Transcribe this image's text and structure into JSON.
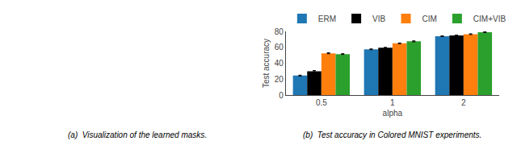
{
  "chart_data": {
    "type": "bar",
    "categories": [
      "0.5",
      "1",
      "2"
    ],
    "xlabel": "alpha",
    "ylabel": "Test accuracy",
    "ylim": [
      0,
      80
    ],
    "yticks": [
      0,
      20,
      40,
      60,
      80
    ],
    "grid": false,
    "legend": "upper left",
    "annotations": [
      "(a)  Visualization of the learned masks.",
      "(b)  Test accuracy in Colored MNIST experiments."
    ],
    "series": [
      {
        "name": "ERM",
        "color": "#1f77b4",
        "values": [
          24.5,
          57.5,
          74.0
        ],
        "errors": [
          0.5,
          0.5,
          0.4
        ]
      },
      {
        "name": "VIB",
        "color": "#000000",
        "values": [
          30.0,
          59.5,
          75.0
        ],
        "errors": [
          0.8,
          0.5,
          0.4
        ]
      },
      {
        "name": "CIM",
        "color": "#ff7f0e",
        "values": [
          52.5,
          65.0,
          76.5
        ],
        "errors": [
          0.6,
          0.5,
          0.5
        ]
      },
      {
        "name": "CIM+VIB",
        "color": "#2ca02c",
        "values": [
          51.5,
          67.5,
          79.0
        ],
        "errors": [
          0.5,
          0.6,
          0.4
        ]
      }
    ]
  }
}
